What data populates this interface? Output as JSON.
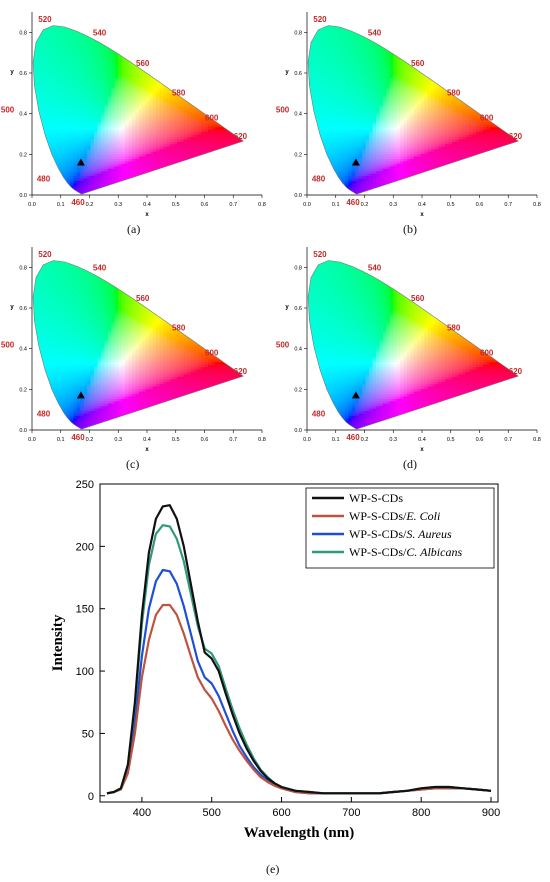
{
  "cie_panels": [
    {
      "id": "a",
      "caption": "(a)",
      "xlabel": "x",
      "ylabel": "y",
      "x_ticks": [
        "0.0",
        "0.1",
        "0.2",
        "0.3",
        "0.4",
        "0.5",
        "0.6",
        "0.7",
        "0.8"
      ],
      "y_ticks": [
        "0.0",
        "0.2",
        "0.4",
        "0.6",
        "0.8"
      ],
      "wavelength_labels": [
        "460",
        "480",
        "500",
        "520",
        "540",
        "560",
        "580",
        "600",
        "620"
      ],
      "point": {
        "x": 0.17,
        "y": 0.16
      }
    },
    {
      "id": "b",
      "caption": "(b)",
      "xlabel": "x",
      "ylabel": "y",
      "x_ticks": [
        "0.0",
        "0.1",
        "0.2",
        "0.3",
        "0.4",
        "0.5",
        "0.6",
        "0.7",
        "0.8"
      ],
      "y_ticks": [
        "0.0",
        "0.2",
        "0.4",
        "0.6",
        "0.8"
      ],
      "wavelength_labels": [
        "460",
        "480",
        "500",
        "520",
        "540",
        "560",
        "580",
        "600",
        "620"
      ],
      "point": {
        "x": 0.17,
        "y": 0.16
      }
    },
    {
      "id": "c",
      "caption": "(c)",
      "xlabel": "x",
      "ylabel": "y",
      "x_ticks": [
        "0.0",
        "0.1",
        "0.2",
        "0.3",
        "0.4",
        "0.5",
        "0.6",
        "0.7",
        "0.8"
      ],
      "y_ticks": [
        "0.0",
        "0.2",
        "0.4",
        "0.6",
        "0.8"
      ],
      "wavelength_labels": [
        "460",
        "480",
        "500",
        "520",
        "540",
        "560",
        "580",
        "600",
        "620"
      ],
      "point": {
        "x": 0.17,
        "y": 0.17
      }
    },
    {
      "id": "d",
      "caption": "(d)",
      "xlabel": "x",
      "ylabel": "y",
      "x_ticks": [
        "0.0",
        "0.1",
        "0.2",
        "0.3",
        "0.4",
        "0.5",
        "0.6",
        "0.7",
        "0.8"
      ],
      "y_ticks": [
        "0.0",
        "0.2",
        "0.4",
        "0.6",
        "0.8"
      ],
      "wavelength_labels": [
        "460",
        "480",
        "500",
        "520",
        "540",
        "560",
        "580",
        "600",
        "620"
      ],
      "point": {
        "x": 0.17,
        "y": 0.17
      }
    }
  ],
  "spectrum_caption": "(e)",
  "chart_data": {
    "type": "line",
    "xlabel": "Wavelength (nm)",
    "ylabel": "Intensity",
    "xlim": [
      340,
      910
    ],
    "ylim": [
      -5,
      250
    ],
    "x_ticks": [
      400,
      500,
      600,
      700,
      800,
      900
    ],
    "y_ticks": [
      0,
      50,
      100,
      150,
      200,
      250
    ],
    "legend_position": "top-right",
    "series": [
      {
        "name": "WP-S-CDs",
        "name_parts": [
          "WP-S-CDs",
          ""
        ],
        "color": "#111111",
        "x": [
          350,
          360,
          370,
          380,
          390,
          400,
          410,
          420,
          430,
          440,
          450,
          460,
          470,
          480,
          490,
          500,
          510,
          520,
          530,
          540,
          550,
          560,
          570,
          580,
          590,
          600,
          620,
          640,
          660,
          680,
          700,
          720,
          740,
          760,
          780,
          800,
          820,
          840,
          860,
          880,
          900
        ],
        "y": [
          2,
          3,
          6,
          25,
          75,
          145,
          195,
          222,
          232,
          233,
          222,
          200,
          170,
          140,
          115,
          110,
          100,
          82,
          65,
          50,
          38,
          28,
          20,
          14,
          10,
          7,
          4,
          3,
          2,
          2,
          2,
          2,
          2,
          3,
          4,
          6,
          7,
          7,
          6,
          5,
          4
        ]
      },
      {
        "name": "WP-S-CDs/E. Coli",
        "name_parts": [
          "WP-S-CDs/",
          "E. Coli"
        ],
        "color": "#c0533e",
        "x": [
          350,
          360,
          370,
          380,
          390,
          400,
          410,
          420,
          430,
          440,
          450,
          460,
          470,
          480,
          490,
          500,
          510,
          520,
          530,
          540,
          550,
          560,
          570,
          580,
          590,
          600,
          620,
          640,
          660,
          680,
          700,
          720,
          740,
          760,
          780,
          800,
          820,
          840,
          860,
          880,
          900
        ],
        "y": [
          2,
          3,
          5,
          18,
          50,
          95,
          125,
          145,
          153,
          153,
          145,
          130,
          112,
          95,
          85,
          78,
          68,
          56,
          45,
          36,
          28,
          21,
          15,
          11,
          8,
          6,
          3,
          2,
          2,
          2,
          2,
          2,
          2,
          3,
          4,
          5,
          6,
          6,
          6,
          5,
          4
        ]
      },
      {
        "name": "WP-S-CDs/S. Aureus",
        "name_parts": [
          "WP-S-CDs/",
          "S. Aureus"
        ],
        "color": "#1f4fd6",
        "x": [
          350,
          360,
          370,
          380,
          390,
          400,
          410,
          420,
          430,
          440,
          450,
          460,
          470,
          480,
          490,
          500,
          510,
          520,
          530,
          540,
          550,
          560,
          570,
          580,
          590,
          600,
          620,
          640,
          660,
          680,
          700,
          720,
          740,
          760,
          780,
          800,
          820,
          840,
          860,
          880,
          900
        ],
        "y": [
          2,
          3,
          6,
          20,
          60,
          112,
          150,
          172,
          181,
          180,
          170,
          152,
          130,
          108,
          95,
          90,
          80,
          66,
          52,
          40,
          31,
          23,
          17,
          12,
          9,
          6,
          3,
          2,
          2,
          2,
          2,
          2,
          2,
          3,
          4,
          5,
          6,
          6,
          6,
          5,
          4
        ]
      },
      {
        "name": "WP-S-CDs/C. Albicans",
        "name_parts": [
          "WP-S-CDs/",
          "C. Albicans"
        ],
        "color": "#2e9a7a",
        "x": [
          350,
          360,
          370,
          380,
          390,
          400,
          410,
          420,
          430,
          440,
          450,
          460,
          470,
          480,
          490,
          500,
          510,
          520,
          530,
          540,
          550,
          560,
          570,
          580,
          590,
          600,
          620,
          640,
          660,
          680,
          700,
          720,
          740,
          760,
          780,
          800,
          820,
          840,
          860,
          880,
          900
        ],
        "y": [
          2,
          3,
          6,
          24,
          72,
          138,
          185,
          210,
          217,
          216,
          206,
          188,
          162,
          136,
          118,
          114,
          104,
          86,
          69,
          54,
          41,
          30,
          21,
          15,
          10,
          7,
          4,
          3,
          2,
          2,
          2,
          2,
          2,
          3,
          4,
          6,
          7,
          7,
          6,
          5,
          4
        ]
      }
    ]
  }
}
